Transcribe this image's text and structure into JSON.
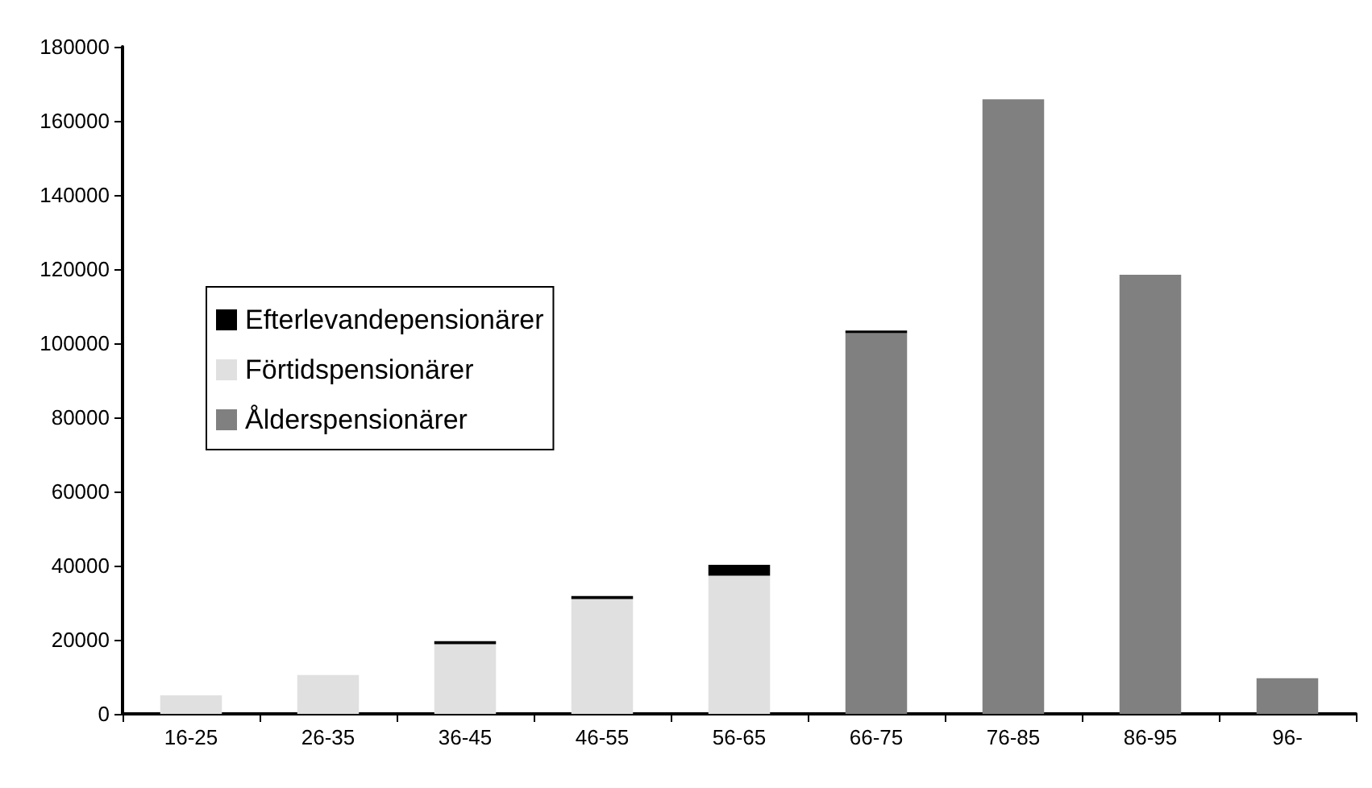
{
  "chart_data": {
    "type": "bar",
    "stacked": true,
    "categories": [
      "16-25",
      "26-35",
      "36-45",
      "46-55",
      "56-65",
      "66-75",
      "76-85",
      "86-95",
      "96-"
    ],
    "series": [
      {
        "name": "Ålderspensionärer",
        "color": "#808080",
        "values": [
          0,
          0,
          0,
          0,
          0,
          102700,
          165800,
          118500,
          9600
        ]
      },
      {
        "name": "Förtidspensionärer",
        "color": "#e0e0e0",
        "values": [
          5000,
          10500,
          18800,
          31000,
          37300,
          0,
          0,
          0,
          0
        ]
      },
      {
        "name": "Efterlevandepensionärer",
        "color": "#000000",
        "values": [
          0,
          0,
          800,
          800,
          2900,
          700,
          0,
          0,
          0
        ]
      }
    ],
    "ylim": [
      0,
      180000
    ],
    "yticks": [
      0,
      20000,
      40000,
      60000,
      80000,
      100000,
      120000,
      140000,
      160000,
      180000
    ],
    "grid": false,
    "legend": "left"
  }
}
